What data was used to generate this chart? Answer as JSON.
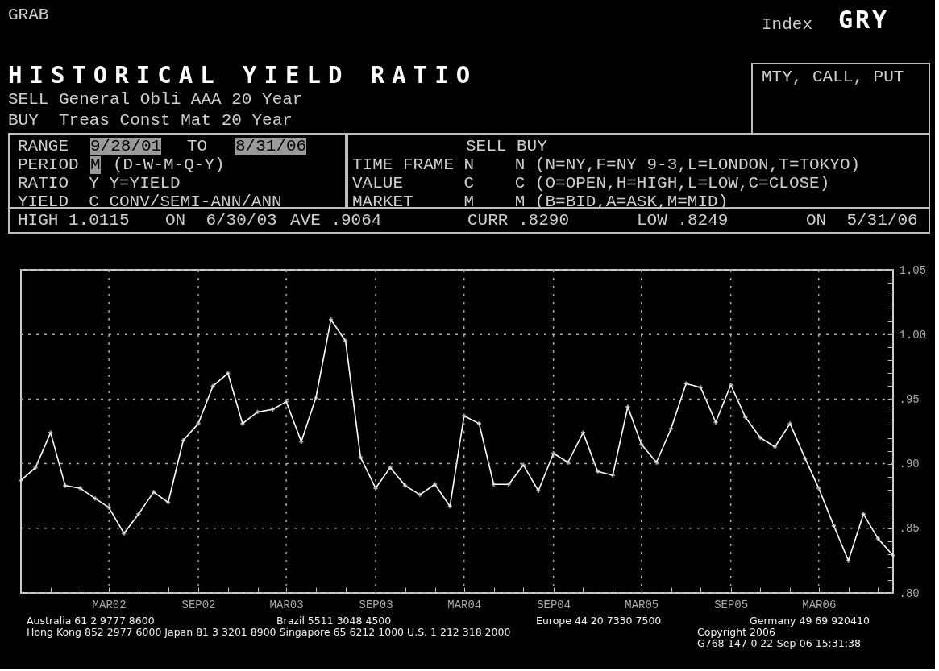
{
  "chart_data": {
    "type": "line",
    "title": "HISTORICAL YIELD RATIO",
    "annotations": [
      "GRAB",
      "Index",
      "GRY",
      "SELL General Obli AAA 20 Year",
      "BUY  Treas Const Mat 20 Year",
      "MTY, CALL, PUT",
      "RANGE",
      "9/28/01",
      "TO",
      "8/31/06",
      "PERIOD",
      "M",
      "(D-W-M-Q-Y)",
      "RATIO  Y Y=YIELD",
      "YIELD  C CONV/SEMI-ANN/ANN",
      "SELL BUY",
      "TIME FRAME N    N (N=NY,F=NY 9-3,L=LONDON,T=TOKYO)",
      "VALUE      C    C (O=OPEN,H=HIGH,L=LOW,C=CLOSE)",
      "MARKET     M    M (B=BID,A=ASK,M=MID)",
      "HIGH 1.0115",
      "ON  6/30/03",
      "AVE .9064",
      "CURR .8290",
      "LOW .8249",
      "ON  5/31/06",
      "Australia 61 2 9777 8600",
      "Brazil 5511 3048 4500",
      "Europe 44 20 7330 7500",
      "Germany 49 69 920410",
      "Hong Kong 852 2977 6000 Japan 81 3 3201 8900 Singapore 65 6212 1000 U.S. 1 212 318 2000",
      "Copyright 2006",
      "G768-147-0 22-Sep-06 15:31:38"
    ],
    "x": [
      "2001-09",
      "2001-10",
      "2001-11",
      "2001-12",
      "2002-01",
      "2002-02",
      "2002-03",
      "2002-04",
      "2002-05",
      "2002-06",
      "2002-07",
      "2002-08",
      "2002-09",
      "2002-10",
      "2002-11",
      "2002-12",
      "2003-01",
      "2003-02",
      "2003-03",
      "2003-04",
      "2003-05",
      "2003-06",
      "2003-07",
      "2003-08",
      "2003-09",
      "2003-10",
      "2003-11",
      "2003-12",
      "2004-01",
      "2004-02",
      "2004-03",
      "2004-04",
      "2004-05",
      "2004-06",
      "2004-07",
      "2004-08",
      "2004-09",
      "2004-10",
      "2004-11",
      "2004-12",
      "2005-01",
      "2005-02",
      "2005-03",
      "2005-04",
      "2005-05",
      "2005-06",
      "2005-07",
      "2005-08",
      "2005-09",
      "2005-10",
      "2005-11",
      "2005-12",
      "2006-01",
      "2006-02",
      "2006-03",
      "2006-04",
      "2006-05",
      "2006-06",
      "2006-07",
      "2006-08"
    ],
    "series": [
      {
        "color": "#ffffff",
        "values": [
          0.887,
          0.897,
          0.924,
          0.883,
          0.881,
          0.873,
          0.866,
          0.846,
          0.861,
          0.878,
          0.87,
          0.918,
          0.931,
          0.96,
          0.97,
          0.931,
          0.94,
          0.942,
          0.948,
          0.917,
          0.951,
          1.0115,
          0.995,
          0.905,
          0.881,
          0.897,
          0.883,
          0.876,
          0.884,
          0.867,
          0.937,
          0.931,
          0.884,
          0.884,
          0.899,
          0.879,
          0.908,
          0.901,
          0.924,
          0.894,
          0.891,
          0.944,
          0.915,
          0.901,
          0.927,
          0.962,
          0.959,
          0.932,
          0.961,
          0.936,
          0.92,
          0.913,
          0.931,
          0.904,
          0.881,
          0.852,
          0.8249,
          0.861,
          0.842,
          0.829
        ]
      }
    ],
    "xlim": [
      "2001-09",
      "2006-08"
    ],
    "xticks": [
      {
        "value": "2001-11",
        "label": null
      },
      {
        "value": "2002-01",
        "label": null
      },
      {
        "value": "2002-03",
        "label": "MAR02"
      },
      {
        "value": "2002-05",
        "label": null
      },
      {
        "value": "2002-07",
        "label": null
      },
      {
        "value": "2002-09",
        "label": "SEP02"
      },
      {
        "value": "2002-11",
        "label": null
      },
      {
        "value": "2003-01",
        "label": null
      },
      {
        "value": "2003-03",
        "label": "MAR03"
      },
      {
        "value": "2003-05",
        "label": null
      },
      {
        "value": "2003-07",
        "label": null
      },
      {
        "value": "2003-09",
        "label": "SEP03"
      },
      {
        "value": "2003-11",
        "label": null
      },
      {
        "value": "2004-01",
        "label": null
      },
      {
        "value": "2004-03",
        "label": "MAR04"
      },
      {
        "value": "2004-05",
        "label": null
      },
      {
        "value": "2004-07",
        "label": null
      },
      {
        "value": "2004-09",
        "label": "SEP04"
      },
      {
        "value": "2004-11",
        "label": null
      },
      {
        "value": "2005-01",
        "label": null
      },
      {
        "value": "2005-03",
        "label": "MAR05"
      },
      {
        "value": "2005-05",
        "label": null
      },
      {
        "value": "2005-07",
        "label": null
      },
      {
        "value": "2005-09",
        "label": "SEP05"
      },
      {
        "value": "2005-11",
        "label": null
      },
      {
        "value": "2006-01",
        "label": null
      },
      {
        "value": "2006-03",
        "label": "MAR06"
      },
      {
        "value": "2006-05",
        "label": null
      },
      {
        "value": "2006-07",
        "label": null
      }
    ],
    "ylim": [
      0.8,
      1.05
    ],
    "yticks": [
      {
        "value": 0.8,
        "label": ".80"
      },
      {
        "value": 0.81,
        "label": null
      },
      {
        "value": 0.82,
        "label": null
      },
      {
        "value": 0.83,
        "label": null
      },
      {
        "value": 0.84,
        "label": null
      },
      {
        "value": 0.85,
        "label": ".85"
      },
      {
        "value": 0.86,
        "label": null
      },
      {
        "value": 0.87,
        "label": null
      },
      {
        "value": 0.88,
        "label": null
      },
      {
        "value": 0.89,
        "label": null
      },
      {
        "value": 0.9,
        "label": ".90"
      },
      {
        "value": 0.91,
        "label": null
      },
      {
        "value": 0.92,
        "label": null
      },
      {
        "value": 0.93,
        "label": null
      },
      {
        "value": 0.94,
        "label": null
      },
      {
        "value": 0.95,
        "label": ".95"
      },
      {
        "value": 0.96,
        "label": null
      },
      {
        "value": 0.97,
        "label": null
      },
      {
        "value": 0.98,
        "label": null
      },
      {
        "value": 0.99,
        "label": null
      },
      {
        "value": 1.0,
        "label": "1.00"
      },
      {
        "value": 1.01,
        "label": null
      },
      {
        "value": 1.02,
        "label": null
      },
      {
        "value": 1.03,
        "label": null
      },
      {
        "value": 1.04,
        "label": null
      },
      {
        "value": 1.05,
        "label": "1.05"
      }
    ],
    "grid": true,
    "marker": "cross",
    "line_style": "solid"
  }
}
